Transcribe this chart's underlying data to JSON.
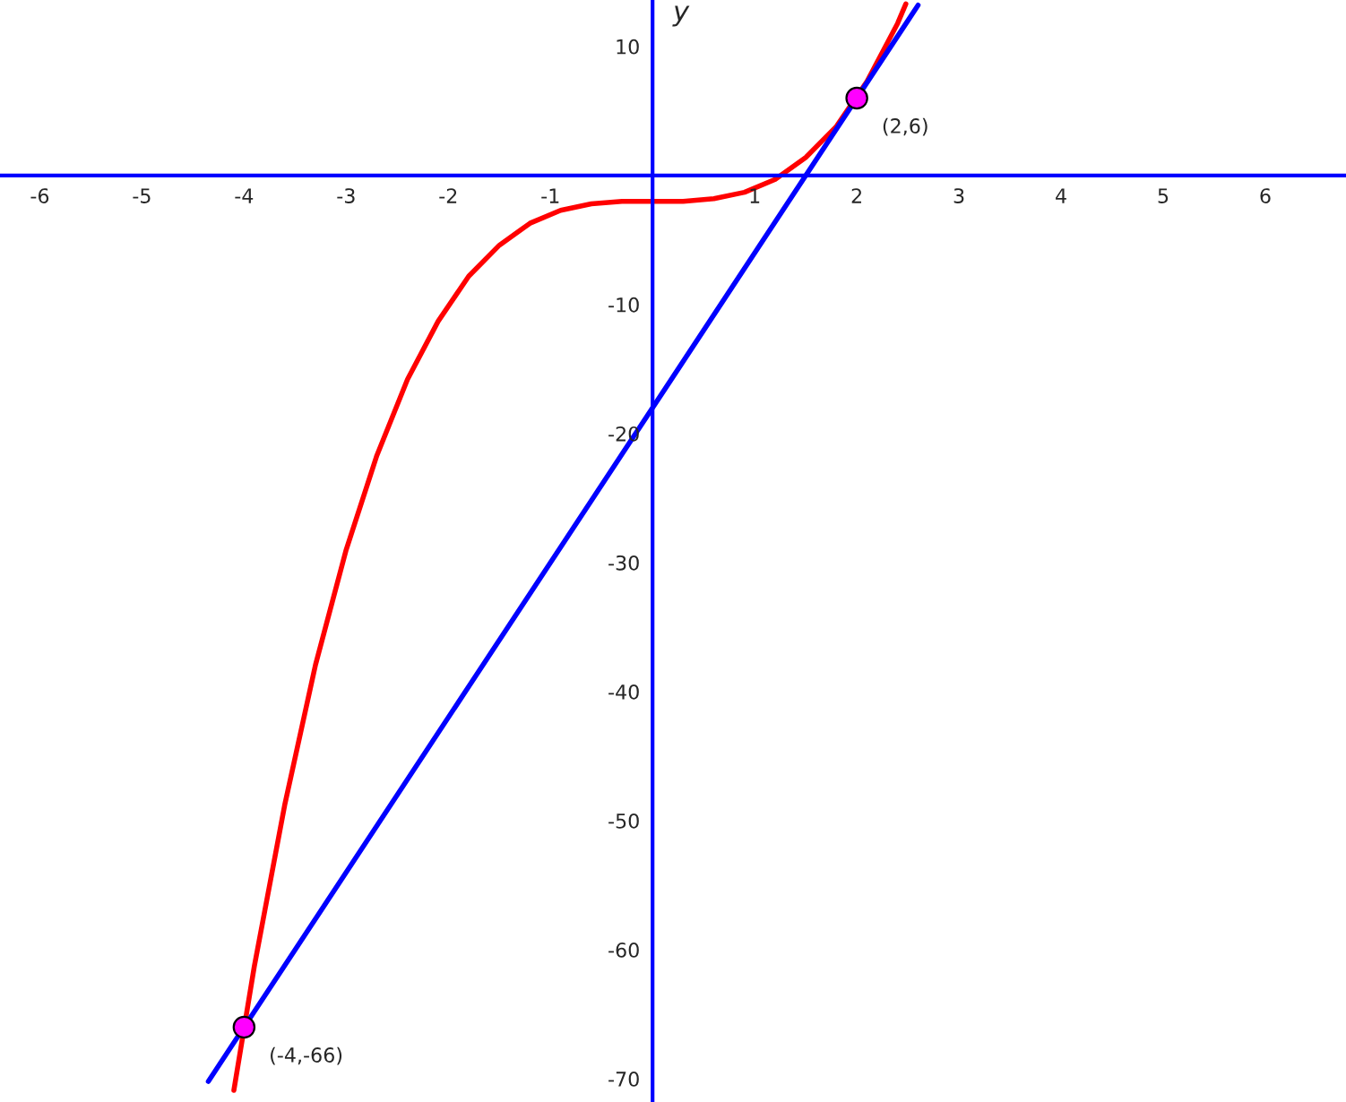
{
  "chart_data": {
    "type": "line",
    "ylabel": "y",
    "xlim": [
      -6.39,
      6.79
    ],
    "ylim": [
      -71.8,
      13.6
    ],
    "xticks": [
      -6,
      -5,
      -4,
      -3,
      -2,
      -1,
      1,
      2,
      3,
      4,
      5,
      6
    ],
    "yticks": [
      -70,
      -60,
      -50,
      -40,
      -30,
      -20,
      -10,
      10
    ],
    "grid": false,
    "legend": false,
    "line_style": "solid",
    "marker": "none",
    "series": [
      {
        "color": "#ff0000",
        "x": [
          -4.1,
          -3.9,
          -3.6,
          -3.3,
          -3,
          -2.7,
          -2.4,
          -2.1,
          -1.8,
          -1.5,
          -1.2,
          -0.9,
          -0.6,
          -0.3,
          0,
          0.3,
          0.6,
          0.9,
          1.2,
          1.5,
          1.8,
          2.1,
          2.4,
          2.48
        ],
        "values": [
          -70.9,
          -61.3,
          -48.7,
          -37.9,
          -29,
          -21.7,
          -15.8,
          -11.3,
          -7.8,
          -5.4,
          -3.7,
          -2.7,
          -2.2,
          -2.0,
          -2,
          -2.0,
          -1.8,
          -1.3,
          -0.3,
          1.4,
          3.8,
          7.3,
          11.8,
          13.3
        ]
      },
      {
        "color": "#0000ff",
        "x": [
          -4.35,
          2.6
        ],
        "values": [
          -70.2,
          13.2
        ]
      },
      {
        "type": "scatter",
        "color": "#ff00ff",
        "marker": "circle",
        "x": [
          2,
          -4
        ],
        "values": [
          6,
          -66
        ]
      }
    ],
    "annotations": [
      {
        "text": "(2,6)",
        "x": 2,
        "y": 6
      },
      {
        "text": "(-4,-66)",
        "x": -4,
        "y": -66
      }
    ]
  }
}
